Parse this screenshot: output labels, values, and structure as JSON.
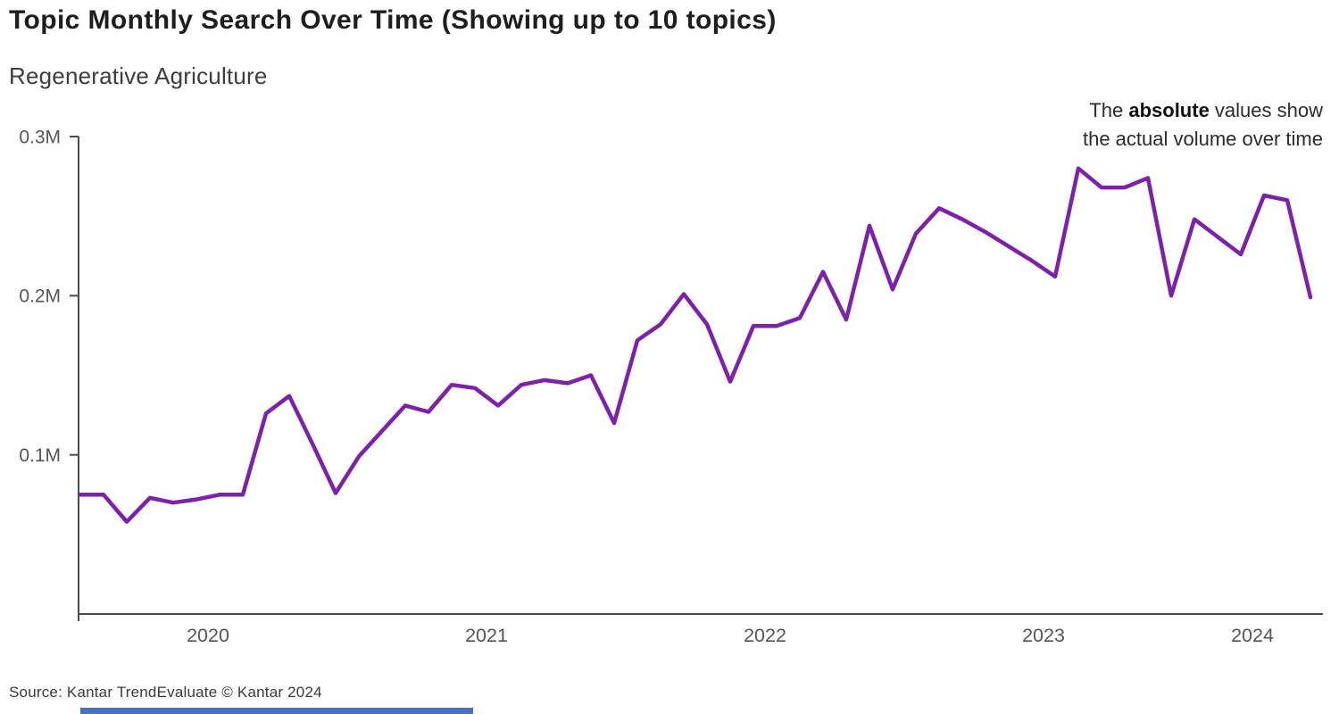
{
  "header": {
    "title": "Topic Monthly Search Over Time (Showing up to 10 topics)",
    "subtitle": "Regenerative Agriculture"
  },
  "annotation": {
    "prefix": "The ",
    "bold": "absolute",
    "suffix": " values show",
    "line2": "the actual volume over time"
  },
  "footer": {
    "source": "Source: Kantar TrendEvaluate © Kantar 2024"
  },
  "colors": {
    "line": "#7D21AC",
    "axis": "#4A4A4A",
    "tick_text": "#555555",
    "accent_bar": "#4472C4"
  },
  "chart_data": {
    "type": "line",
    "title": "Topic Monthly Search Over Time (Showing up to 10 topics)",
    "series_name": "Regenerative Agriculture",
    "unit": "monthly search volume",
    "grid": false,
    "legend": "none",
    "ylim": [
      0,
      300000
    ],
    "y_ticks": [
      {
        "label": "0.1M",
        "value": 100000
      },
      {
        "label": "0.2M",
        "value": 200000
      },
      {
        "label": "0.3M",
        "value": 300000
      }
    ],
    "x_tick_years": [
      "2020",
      "2021",
      "2022",
      "2023",
      "2024"
    ],
    "x": [
      "2020-01",
      "2020-02",
      "2020-03",
      "2020-04",
      "2020-05",
      "2020-06",
      "2020-07",
      "2020-08",
      "2020-09",
      "2020-10",
      "2020-11",
      "2020-12",
      "2021-01",
      "2021-02",
      "2021-03",
      "2021-04",
      "2021-05",
      "2021-06",
      "2021-07",
      "2021-08",
      "2021-09",
      "2021-10",
      "2021-11",
      "2021-12",
      "2022-01",
      "2022-02",
      "2022-03",
      "2022-04",
      "2022-05",
      "2022-06",
      "2022-07",
      "2022-08",
      "2022-09",
      "2022-10",
      "2022-11",
      "2022-12",
      "2023-01",
      "2023-02",
      "2023-03",
      "2023-04",
      "2023-05",
      "2023-06",
      "2023-07",
      "2023-08",
      "2023-09",
      "2023-10",
      "2023-11",
      "2023-12",
      "2024-01",
      "2024-02",
      "2024-03",
      "2024-04",
      "2024-05",
      "2024-06"
    ],
    "values": [
      75000,
      75000,
      58000,
      73000,
      70000,
      72000,
      75000,
      75000,
      126000,
      137000,
      107000,
      76000,
      99000,
      115000,
      131000,
      127000,
      144000,
      142000,
      131000,
      144000,
      147000,
      145000,
      150000,
      120000,
      172000,
      182000,
      201000,
      182000,
      146000,
      181000,
      181000,
      186000,
      215000,
      185000,
      244000,
      204000,
      239000,
      255000,
      248000,
      240000,
      231000,
      222000,
      212000,
      280000,
      268000,
      268000,
      274000,
      200000,
      248000,
      237000,
      226000,
      263000,
      260000,
      199000
    ]
  }
}
